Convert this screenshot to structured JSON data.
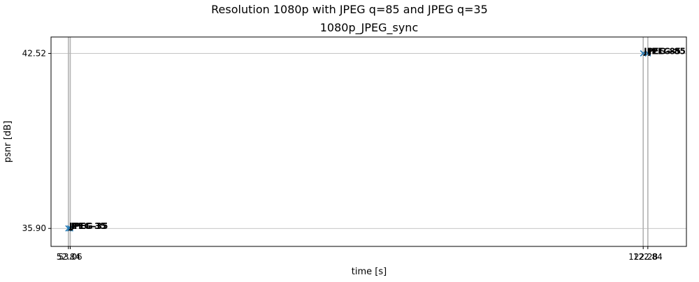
{
  "figure": {
    "suptitle": "Resolution 1080p with JPEG q=85 and JPEG q=35"
  },
  "chart_data": {
    "type": "scatter",
    "title": "1080p_JPEG_sync",
    "xlabel": "time [s]",
    "ylabel": "psnr [dB]",
    "grid": true,
    "xlim": [
      50.74,
      127.5
    ],
    "ylim": [
      35.22,
      43.14
    ],
    "yticks": [
      "35.90",
      "42.52"
    ],
    "ytick_values": [
      35.9,
      42.52
    ],
    "series": [
      {
        "marker": "x",
        "color": "#1f77b4",
        "points": [
          {
            "x": 52.84,
            "y": 35.9,
            "label": "JPEG-35"
          },
          {
            "x": 53.06,
            "y": 35.9,
            "label": "JPEG-35"
          },
          {
            "x": 122.28,
            "y": 42.52,
            "label": "JPEG-85"
          },
          {
            "x": 122.84,
            "y": 42.52,
            "label": "JPEG-85"
          }
        ]
      }
    ],
    "xtick_labels": [
      "52.84",
      "53.06",
      "122.28",
      "122.84"
    ],
    "vline_color": "#b3b3b3"
  }
}
